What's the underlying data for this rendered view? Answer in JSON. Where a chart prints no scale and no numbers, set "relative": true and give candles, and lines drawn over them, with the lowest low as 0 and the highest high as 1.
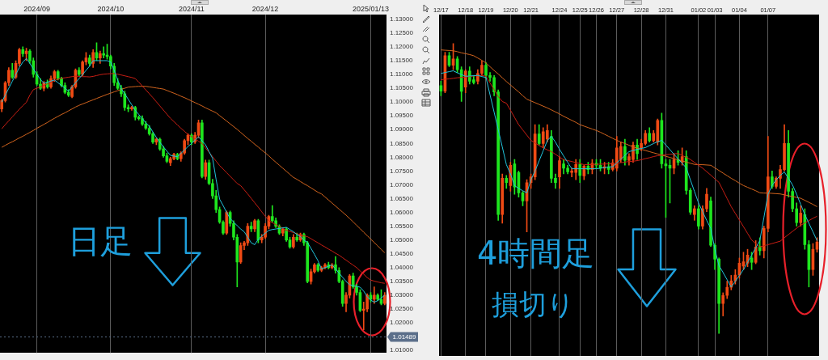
{
  "chart_data": [
    {
      "type": "candlestick",
      "grid": "x",
      "categories": [
        null,
        null,
        null,
        null,
        null,
        null,
        null,
        null,
        null,
        null,
        "2024/09",
        null,
        null,
        null,
        null,
        null,
        null,
        null,
        null,
        null,
        null,
        null,
        null,
        null,
        null,
        null,
        null,
        null,
        null,
        null,
        null,
        "2024/10",
        null,
        null,
        null,
        null,
        null,
        null,
        null,
        null,
        null,
        null,
        null,
        null,
        null,
        null,
        null,
        null,
        null,
        null,
        null,
        null,
        null,
        null,
        "2024/11",
        null,
        null,
        null,
        null,
        null,
        null,
        null,
        null,
        null,
        null,
        null,
        null,
        null,
        null,
        null,
        null,
        null,
        null,
        null,
        null,
        "2024/12",
        null,
        null,
        null,
        null,
        null,
        null,
        null,
        null,
        null,
        null,
        null,
        null,
        null,
        null,
        null,
        null,
        null,
        null,
        null,
        null,
        null,
        null,
        null,
        null,
        null,
        null,
        null,
        null,
        null,
        "2025/01/13",
        null,
        null,
        null,
        null
      ],
      "ylim": [
        1.0091,
        1.1317
      ],
      "yticks": [
        {
          "value": 1.01,
          "label": "1.01000"
        },
        {
          "value": 1.02,
          "label": "1.02000"
        },
        {
          "value": 1.025,
          "label": "1.02500"
        },
        {
          "value": 1.03,
          "label": "1.03000"
        },
        {
          "value": 1.035,
          "label": "1.03500"
        },
        {
          "value": 1.04,
          "label": "1.04000"
        },
        {
          "value": 1.045,
          "label": "1.04500"
        },
        {
          "value": 1.05,
          "label": "1.05000"
        },
        {
          "value": 1.055,
          "label": "1.05500"
        },
        {
          "value": 1.06,
          "label": "1.06000"
        },
        {
          "value": 1.065,
          "label": "1.06500"
        },
        {
          "value": 1.07,
          "label": "1.07000"
        },
        {
          "value": 1.075,
          "label": "1.07500"
        },
        {
          "value": 1.08,
          "label": "1.08000"
        },
        {
          "value": 1.085,
          "label": "1.08500"
        },
        {
          "value": 1.09,
          "label": "1.09000"
        },
        {
          "value": 1.095,
          "label": "1.09500"
        },
        {
          "value": 1.1,
          "label": "1.10000"
        },
        {
          "value": 1.105,
          "label": "1.10500"
        },
        {
          "value": 1.11,
          "label": "1.11000"
        },
        {
          "value": 1.115,
          "label": "1.11500"
        },
        {
          "value": 1.12,
          "label": "1.12000"
        },
        {
          "value": 1.125,
          "label": "1.12500"
        },
        {
          "value": 1.13,
          "label": "1.13000"
        }
      ],
      "ohlc": [
        [
          1.0975,
          1.101,
          1.0965,
          1.1005
        ],
        [
          1.1005,
          1.1075,
          1.1,
          1.107
        ],
        [
          1.107,
          1.1125,
          1.106,
          1.1115
        ],
        [
          1.1115,
          1.114,
          1.1085,
          1.109
        ],
        [
          1.109,
          1.115,
          1.1085,
          1.114
        ],
        [
          1.114,
          1.1195,
          1.113,
          1.119
        ],
        [
          1.119,
          1.12,
          1.1165,
          1.1175
        ],
        [
          1.1175,
          1.1195,
          1.115,
          1.1185
        ],
        [
          1.1185,
          1.119,
          1.114,
          1.115
        ],
        [
          1.115,
          1.116,
          1.109,
          1.11
        ],
        [
          1.11,
          1.111,
          1.106,
          1.1065
        ],
        [
          1.1065,
          1.1085,
          1.1045,
          1.105
        ],
        [
          1.105,
          1.1075,
          1.104,
          1.107
        ],
        [
          1.107,
          1.108,
          1.105,
          1.1055
        ],
        [
          1.1055,
          1.1095,
          1.105,
          1.1085
        ],
        [
          1.1085,
          1.1115,
          1.1075,
          1.111
        ],
        [
          1.111,
          1.1115,
          1.108,
          1.1085
        ],
        [
          1.1085,
          1.109,
          1.1055,
          1.106
        ],
        [
          1.106,
          1.107,
          1.103,
          1.1035
        ],
        [
          1.1035,
          1.1045,
          1.102,
          1.1025
        ],
        [
          1.102,
          1.106,
          1.1015,
          1.1055
        ],
        [
          1.1055,
          1.112,
          1.105,
          1.1115
        ],
        [
          1.1115,
          1.1125,
          1.1095,
          1.11
        ],
        [
          1.11,
          1.115,
          1.1095,
          1.1145
        ],
        [
          1.1145,
          1.118,
          1.1135,
          1.116
        ],
        [
          1.116,
          1.117,
          1.113,
          1.114
        ],
        [
          1.114,
          1.119,
          1.1125,
          1.118
        ],
        [
          1.118,
          1.1215,
          1.115,
          1.116
        ],
        [
          1.116,
          1.1185,
          1.114,
          1.1175
        ],
        [
          1.1175,
          1.12,
          1.116,
          1.117
        ],
        [
          1.117,
          1.121,
          1.1155,
          1.1165
        ],
        [
          1.1165,
          1.117,
          1.112,
          1.113
        ],
        [
          1.113,
          1.114,
          1.106,
          1.107
        ],
        [
          1.107,
          1.1085,
          1.1045,
          1.105
        ],
        [
          1.105,
          1.106,
          1.102,
          1.103
        ],
        [
          1.103,
          1.104,
          1.097,
          1.098
        ],
        [
          1.098,
          1.099,
          1.0965,
          1.0975
        ],
        [
          1.0975,
          1.0985,
          1.097,
          1.098
        ],
        [
          1.098,
          1.0985,
          1.0935,
          1.0945
        ],
        [
          1.0945,
          1.095,
          1.0935,
          1.094
        ],
        [
          1.094,
          1.095,
          1.0915,
          1.092
        ],
        [
          1.092,
          1.093,
          1.09,
          1.0905
        ],
        [
          1.0905,
          1.0915,
          1.088,
          1.0885
        ],
        [
          1.0885,
          1.089,
          1.085,
          1.0855
        ],
        [
          1.0855,
          1.087,
          1.0845,
          1.0865
        ],
        [
          1.0865,
          1.087,
          1.0825,
          1.083
        ],
        [
          1.083,
          1.084,
          1.08,
          1.0805
        ],
        [
          1.0805,
          1.0815,
          1.078,
          1.0785
        ],
        [
          1.078,
          1.08,
          1.077,
          1.0795
        ],
        [
          1.0795,
          1.0815,
          1.079,
          1.081
        ],
        [
          1.081,
          1.0815,
          1.079,
          1.0795
        ],
        [
          1.0795,
          1.082,
          1.0785,
          1.0815
        ],
        [
          1.0815,
          1.0865,
          1.081,
          1.086
        ],
        [
          1.086,
          1.0885,
          1.0845,
          1.088
        ],
        [
          1.088,
          1.0885,
          1.0845,
          1.0855
        ],
        [
          1.0855,
          1.089,
          1.085,
          1.088
        ],
        [
          1.088,
          1.0935,
          1.087,
          1.0925
        ],
        [
          1.0925,
          1.0935,
          1.0725,
          1.073
        ],
        [
          1.073,
          1.079,
          1.072,
          1.078
        ],
        [
          1.078,
          1.079,
          1.07,
          1.0705
        ],
        [
          1.0705,
          1.072,
          1.065,
          1.066
        ],
        [
          1.066,
          1.068,
          1.06,
          1.061
        ],
        [
          1.061,
          1.062,
          1.056,
          1.0565
        ],
        [
          1.0565,
          1.057,
          1.052,
          1.0525
        ],
        [
          1.0525,
          1.0605,
          1.052,
          1.06
        ],
        [
          1.06,
          1.0605,
          1.055,
          1.056
        ],
        [
          1.056,
          1.057,
          1.05,
          1.051
        ],
        [
          1.051,
          1.052,
          1.033,
          1.042
        ],
        [
          1.042,
          1.049,
          1.0415,
          1.048
        ],
        [
          1.048,
          1.0495,
          1.0465,
          1.049
        ],
        [
          1.049,
          1.056,
          1.048,
          1.055
        ],
        [
          1.055,
          1.0565,
          1.053,
          1.054
        ],
        [
          1.054,
          1.0575,
          1.053,
          1.057
        ],
        [
          1.057,
          1.0575,
          1.049,
          1.05
        ],
        [
          1.05,
          1.052,
          1.049,
          1.051
        ],
        [
          1.051,
          1.056,
          1.0505,
          1.055
        ],
        [
          1.055,
          1.059,
          1.054,
          1.0585
        ],
        [
          1.0585,
          1.0625,
          1.0565,
          1.057
        ],
        [
          1.057,
          1.058,
          1.0545,
          1.055
        ],
        [
          1.055,
          1.0555,
          1.052,
          1.0525
        ],
        [
          1.0525,
          1.0545,
          1.0515,
          1.054
        ],
        [
          1.054,
          1.0545,
          1.0495,
          1.05
        ],
        [
          1.05,
          1.051,
          1.047,
          1.0475
        ],
        [
          1.0475,
          1.052,
          1.047,
          1.051
        ],
        [
          1.051,
          1.0525,
          1.0495,
          1.05
        ],
        [
          1.05,
          1.0525,
          1.0495,
          1.052
        ],
        [
          1.052,
          1.0525,
          1.048,
          1.049
        ],
        [
          1.049,
          1.0495,
          1.0345,
          1.035
        ],
        [
          1.035,
          1.0395,
          1.034,
          1.0385
        ],
        [
          1.0385,
          1.0415,
          1.038,
          1.041
        ],
        [
          1.041,
          1.0415,
          1.0385,
          1.039
        ],
        [
          1.039,
          1.0405,
          1.0385,
          1.04
        ],
        [
          1.04,
          1.0415,
          1.0395,
          1.041
        ],
        [
          1.041,
          1.042,
          1.0395,
          1.04
        ],
        [
          1.04,
          1.0415,
          1.0395,
          1.041
        ],
        [
          1.041,
          1.044,
          1.038,
          1.039
        ],
        [
          1.039,
          1.04,
          1.0345,
          1.035
        ],
        [
          1.035,
          1.0355,
          1.026,
          1.027
        ],
        [
          1.027,
          1.031,
          1.024,
          1.03
        ],
        [
          1.03,
          1.0375,
          1.029,
          1.037
        ],
        [
          1.037,
          1.038,
          1.0325,
          1.033
        ],
        [
          1.033,
          1.034,
          1.03,
          1.031
        ],
        [
          1.031,
          1.032,
          1.024,
          1.0245
        ],
        [
          1.0245,
          1.0275,
          1.0175,
          1.025
        ],
        [
          1.025,
          1.0305,
          1.024,
          1.03
        ],
        [
          1.03,
          1.031,
          1.0275,
          1.0285
        ],
        [
          1.0285,
          1.033,
          1.027,
          1.03
        ],
        [
          1.03,
          1.0305,
          1.028,
          1.0285
        ],
        [
          1.0285,
          1.032,
          1.0265,
          1.027
        ],
        [
          1.027,
          1.031,
          1.0265,
          1.03
        ]
      ],
      "colors": [
        "#f04a14",
        "#f04a14",
        "#f04a14",
        "#1ee61e",
        "#f04a14",
        "#f04a14",
        "#1ee61e",
        "#f04a14",
        "#1ee61e",
        "#1ee61e",
        "#1ee61e",
        "#1ee61e",
        "#f04a14",
        "#1ee61e",
        "#f04a14",
        "#f04a14",
        "#1ee61e",
        "#1ee61e",
        "#1ee61e",
        "#1ee61e",
        "#f04a14",
        "#f04a14",
        "#1ee61e",
        "#f04a14",
        "#f04a14",
        "#1ee61e",
        "#f04a14",
        "#1ee61e",
        "#f04a14",
        "#1ee61e",
        "#1ee61e",
        "#1ee61e",
        "#1ee61e",
        "#1ee61e",
        "#1ee61e",
        "#1ee61e",
        "#1ee61e",
        "#f04a14",
        "#1ee61e",
        "#1ee61e",
        "#1ee61e",
        "#1ee61e",
        "#1ee61e",
        "#1ee61e",
        "#f04a14",
        "#1ee61e",
        "#1ee61e",
        "#1ee61e",
        "#f04a14",
        "#f04a14",
        "#1ee61e",
        "#f04a14",
        "#f04a14",
        "#f04a14",
        "#1ee61e",
        "#f04a14",
        "#f04a14",
        "#1ee61e",
        "#f04a14",
        "#1ee61e",
        "#1ee61e",
        "#1ee61e",
        "#1ee61e",
        "#1ee61e",
        "#f04a14",
        "#1ee61e",
        "#1ee61e",
        "#1ee61e",
        "#f04a14",
        "#f04a14",
        "#f04a14",
        "#1ee61e",
        "#f04a14",
        "#1ee61e",
        "#f04a14",
        "#f04a14",
        "#f04a14",
        "#1ee61e",
        "#1ee61e",
        "#1ee61e",
        "#f04a14",
        "#1ee61e",
        "#1ee61e",
        "#f04a14",
        "#1ee61e",
        "#f04a14",
        "#1ee61e",
        "#1ee61e",
        "#f04a14",
        "#f04a14",
        "#1ee61e",
        "#f04a14",
        "#f04a14",
        "#1ee61e",
        "#f04a14",
        "#1ee61e",
        "#1ee61e",
        "#1ee61e",
        "#f04a14",
        "#f04a14",
        "#1ee61e",
        "#1ee61e",
        "#1ee61e",
        "#f04a14",
        "#f04a14",
        "#1ee61e",
        "#f04a14",
        "#1ee61e",
        "#1ee61e",
        "#f04a14"
      ],
      "series": [
        {
          "type": "line",
          "color": "#22c4dc",
          "values": [
            1.1,
            1.1025,
            1.105,
            1.1075,
            1.11,
            1.1125,
            1.1145,
            1.1158,
            1.114,
            1.112,
            1.11,
            1.1082,
            1.1068,
            1.1072,
            1.1076,
            1.108,
            1.107,
            1.106,
            1.105,
            1.1039,
            1.1055,
            1.107,
            1.1085,
            1.11,
            1.1115,
            1.113,
            1.115,
            1.115,
            1.115,
            1.115,
            1.115,
            1.1145,
            1.1115,
            1.108,
            1.1048,
            1.103,
            1.101,
            1.099,
            1.097,
            1.0955,
            1.094,
            1.0925,
            1.0912,
            1.0892,
            1.0872,
            1.0854,
            1.0838,
            1.0822,
            1.0807,
            1.0804,
            1.0802,
            1.0814,
            1.0826,
            1.0839,
            1.085,
            1.0862,
            1.0874,
            1.086,
            1.0845,
            1.082,
            1.0796,
            1.072,
            1.0648,
            1.0625,
            1.06,
            1.0578,
            1.0565,
            1.0552,
            1.054,
            1.053,
            1.051,
            1.049,
            1.0483,
            1.0503,
            1.0514,
            1.0525,
            1.0535,
            1.0538,
            1.054,
            1.0542,
            1.0544,
            1.0546,
            1.0538,
            1.053,
            1.052,
            1.0512,
            1.05,
            1.0491,
            1.047,
            1.0448,
            1.0425,
            1.0395,
            1.04,
            1.0405,
            1.041,
            1.0395,
            1.038,
            1.0365,
            1.035,
            1.0338,
            1.0335,
            1.0332,
            1.0329,
            1.0315,
            1.0295,
            1.0282,
            1.0275,
            1.028,
            1.029,
            1.03
          ]
        },
        {
          "type": "line",
          "color": "#c81e14",
          "values": [
            1.0903,
            1.0918,
            1.0932,
            1.0946,
            1.096,
            1.0974,
            1.0987,
            1.0999,
            1.1025,
            1.1045,
            1.105,
            1.1055,
            1.106,
            1.1066,
            1.1072,
            1.1078,
            1.1083,
            1.1086,
            1.1088,
            1.109,
            1.1092,
            1.1094,
            1.1093,
            1.1092,
            1.1092,
            1.1091,
            1.1093,
            1.1096,
            1.1099,
            1.1101,
            1.1102,
            1.1103,
            1.1103,
            1.1101,
            1.1098,
            1.1095,
            1.1092,
            1.1089,
            1.1085,
            1.1072,
            1.1058,
            1.1044,
            1.103,
            1.1016,
            1.1001,
            1.0986,
            1.0971,
            1.0956,
            1.0941,
            1.0929,
            1.0917,
            1.0905,
            1.0894,
            1.0883,
            1.0875,
            1.0867,
            1.0858,
            1.085,
            1.0834,
            1.0818,
            1.0802,
            1.0786,
            1.077,
            1.0757,
            1.0744,
            1.0731,
            1.0718,
            1.0705,
            1.0697,
            1.0682,
            1.0667,
            1.0651,
            1.0635,
            1.0619,
            1.0602,
            1.0586,
            1.057,
            1.0563,
            1.0556,
            1.0549,
            1.0542,
            1.0535,
            1.0531,
            1.0527,
            1.0523,
            1.0519,
            1.0515,
            1.0512,
            1.0505,
            1.0497,
            1.049,
            1.0482,
            1.0475,
            1.0467,
            1.046,
            1.0452,
            1.0445,
            1.0436,
            1.0427,
            1.0418,
            1.0409,
            1.04,
            1.0388,
            1.0376,
            1.0364,
            1.0355,
            1.0351,
            1.0348,
            1.0345,
            1.0343
          ]
        },
        {
          "type": "line",
          "color": "#d2641e",
          "values": [
            1.0836,
            1.0843,
            1.085,
            1.0856,
            1.0863,
            1.087,
            1.0876,
            1.0883,
            1.089,
            1.0897,
            1.0905,
            1.0912,
            1.0919,
            1.0926,
            1.0934,
            1.0941,
            1.0948,
            1.0955,
            1.0961,
            1.0968,
            1.0975,
            1.0982,
            1.0988,
            1.0993,
            1.0998,
            1.1003,
            1.1008,
            1.1013,
            1.1018,
            1.1023,
            1.1028,
            1.1032,
            1.1037,
            1.1041,
            1.1046,
            1.105,
            1.1054,
            1.1055,
            1.1056,
            1.1057,
            1.1057,
            1.1057,
            1.1055,
            1.1053,
            1.1051,
            1.1049,
            1.1047,
            1.1042,
            1.1037,
            1.1032,
            1.1027,
            1.1021,
            1.1016,
            1.101,
            1.1004,
            1.0998,
            1.0992,
            1.0986,
            1.0979,
            1.0973,
            1.0967,
            1.0961,
            1.0951,
            1.0941,
            1.0931,
            1.0921,
            1.0911,
            1.0901,
            1.089,
            1.0879,
            1.0868,
            1.0858,
            1.0847,
            1.0837,
            1.0826,
            1.0816,
            1.0805,
            1.0793,
            1.0782,
            1.0771,
            1.076,
            1.0749,
            1.0738,
            1.0727,
            1.072,
            1.0712,
            1.0704,
            1.0697,
            1.0689,
            1.0681,
            1.0673,
            1.0667,
            1.0656,
            1.0645,
            1.0634,
            1.0623,
            1.0612,
            1.0601,
            1.059,
            1.0578,
            1.0566,
            1.0553,
            1.0541,
            1.0528,
            1.0516,
            1.0503,
            1.0491,
            1.0479,
            1.0466,
            1.0454
          ]
        }
      ],
      "ref_lines": [
        {
          "axis": "y",
          "value": 1.01489,
          "label": "1.01489"
        }
      ],
      "annotations": [
        "日足"
      ]
    },
    {
      "type": "candlestick",
      "grid": "x",
      "relative": true,
      "categories": [
        "12/17",
        null,
        null,
        null,
        null,
        null,
        "12/18",
        null,
        null,
        null,
        null,
        "12/19",
        null,
        null,
        null,
        null,
        null,
        "12/20",
        null,
        null,
        null,
        null,
        "12/21",
        null,
        null,
        null,
        null,
        null,
        null,
        "12/24",
        null,
        null,
        null,
        null,
        "12/25",
        null,
        null,
        null,
        "12/26",
        null,
        null,
        null,
        null,
        "12/27",
        null,
        null,
        null,
        null,
        null,
        "12/28",
        null,
        null,
        null,
        null,
        null,
        "12/31",
        null,
        null,
        null,
        null,
        null,
        null,
        null,
        "01/02",
        null,
        null,
        null,
        "01/03",
        null,
        null,
        null,
        null,
        null,
        "01/04",
        null,
        null,
        null,
        null,
        null,
        null,
        "01/07",
        null,
        null,
        null,
        null,
        null,
        null,
        null,
        null,
        null,
        null,
        null,
        null
      ],
      "ohlc": [
        [
          0.855,
          0.87,
          0.82,
          0.836
        ],
        [
          0.836,
          0.97,
          0.83,
          0.958
        ],
        [
          0.958,
          0.97,
          0.92,
          0.925
        ],
        [
          0.925,
          1,
          0.91,
          0.947
        ],
        [
          0.947,
          0.955,
          0.9,
          0.91
        ],
        [
          0.91,
          0.92,
          0.8,
          0.835
        ],
        [
          0.85,
          0.91,
          0.83,
          0.905
        ],
        [
          0.905,
          0.92,
          0.86,
          0.87
        ],
        [
          0.875,
          0.89,
          0.86,
          0.865
        ],
        [
          0.87,
          0.91,
          0.86,
          0.897
        ],
        [
          0.897,
          0.94,
          0.89,
          0.925
        ],
        [
          0.925,
          0.935,
          0.88,
          0.89
        ],
        [
          0.89,
          0.9,
          0.87,
          0.883
        ],
        [
          0.883,
          0.89,
          0.82,
          0.833
        ],
        [
          0.833,
          0.84,
          0.39,
          0.41
        ],
        [
          0.41,
          0.55,
          0.38,
          0.535
        ],
        [
          0.535,
          0.545,
          0.5,
          0.52
        ],
        [
          0.51,
          0.59,
          0.49,
          0.58
        ],
        [
          0.585,
          0.6,
          0.48,
          0.505
        ],
        [
          0.555,
          0.56,
          0.47,
          0.485
        ],
        [
          0.485,
          0.49,
          0.44,
          0.457
        ],
        [
          0.457,
          0.53,
          0.35,
          0.52
        ],
        [
          0.52,
          0.55,
          0.5,
          0.54
        ],
        [
          0.54,
          0.72,
          0.53,
          0.688
        ],
        [
          0.688,
          0.72,
          0.65,
          0.655
        ],
        [
          0.655,
          0.71,
          0.64,
          0.696
        ],
        [
          0.67,
          0.72,
          0.66,
          0.7
        ],
        [
          0.68,
          0.7,
          0.52,
          0.535
        ],
        [
          0.535,
          0.55,
          0.5,
          0.52
        ],
        [
          0.54,
          0.61,
          0.5,
          0.596
        ],
        [
          0.585,
          0.6,
          0.55,
          0.57
        ],
        [
          0.57,
          0.58,
          0.55,
          0.557
        ],
        [
          0.555,
          0.57,
          0.54,
          0.56
        ],
        [
          0.555,
          0.6,
          0.53,
          0.583
        ],
        [
          0.583,
          0.6,
          0.52,
          0.545
        ],
        [
          0.543,
          0.58,
          0.53,
          0.577
        ],
        [
          0.577,
          0.59,
          0.55,
          0.565
        ],
        [
          0.565,
          0.6,
          0.55,
          0.587
        ],
        [
          0.587,
          0.6,
          0.57,
          0.58
        ],
        [
          0.58,
          0.6,
          0.56,
          0.57
        ],
        [
          0.57,
          0.59,
          0.55,
          0.575
        ],
        [
          0.575,
          0.59,
          0.55,
          0.566
        ],
        [
          0.566,
          0.6,
          0.56,
          0.588
        ],
        [
          0.57,
          0.68,
          0.56,
          0.64
        ],
        [
          0.6,
          0.66,
          0.59,
          0.645
        ],
        [
          0.645,
          0.67,
          0.58,
          0.597
        ],
        [
          0.597,
          0.62,
          0.58,
          0.61
        ],
        [
          0.6,
          0.66,
          0.59,
          0.65
        ],
        [
          0.65,
          0.67,
          0.6,
          0.62
        ],
        [
          0.64,
          0.67,
          0.63,
          0.655
        ],
        [
          0.655,
          0.7,
          0.65,
          0.69
        ],
        [
          0.69,
          0.71,
          0.66,
          0.665
        ],
        [
          0.665,
          0.7,
          0.66,
          0.69
        ],
        [
          0.66,
          0.74,
          0.65,
          0.735
        ],
        [
          0.735,
          0.76,
          0.57,
          0.585
        ],
        [
          0.585,
          0.6,
          0.4,
          0.578
        ],
        [
          0.58,
          0.6,
          0.45,
          0.57
        ],
        [
          0.57,
          0.62,
          0.55,
          0.6
        ],
        [
          0.6,
          0.63,
          0.58,
          0.59
        ],
        [
          0.59,
          0.64,
          0.58,
          0.61
        ],
        [
          0.61,
          0.63,
          0.48,
          0.493
        ],
        [
          0.493,
          0.5,
          0.41,
          0.418
        ],
        [
          0.41,
          0.44,
          0.39,
          0.43
        ],
        [
          0.43,
          0.44,
          0.36,
          0.37
        ],
        [
          0.37,
          0.44,
          0.36,
          0.43
        ],
        [
          0.43,
          0.5,
          0.42,
          0.48
        ],
        [
          0.457,
          0.47,
          0.3,
          0.304
        ],
        [
          0.304,
          0.31,
          0.22,
          0.256
        ],
        [
          0.256,
          0.26,
          0,
          0.103
        ],
        [
          0.103,
          0.14,
          0.06,
          0.131
        ],
        [
          0.131,
          0.18,
          0.12,
          0.159
        ],
        [
          0.159,
          0.2,
          0.15,
          0.181
        ],
        [
          0.181,
          0.22,
          0.17,
          0.201
        ],
        [
          0.201,
          0.26,
          0.19,
          0.242
        ],
        [
          0.232,
          0.28,
          0.22,
          0.247
        ],
        [
          0.242,
          0.29,
          0.23,
          0.27
        ],
        [
          0.26,
          0.28,
          0.22,
          0.245
        ],
        [
          0.245,
          0.32,
          0.24,
          0.298
        ],
        [
          0.3,
          0.33,
          0.27,
          0.285
        ],
        [
          0.285,
          0.37,
          0.26,
          0.362
        ],
        [
          0.362,
          0.68,
          0.35,
          0.54
        ],
        [
          0.54,
          0.56,
          0.5,
          0.507
        ],
        [
          0.507,
          0.54,
          0.5,
          0.535
        ],
        [
          0.535,
          0.58,
          0.5,
          0.565
        ],
        [
          0.565,
          0.72,
          0.56,
          0.655
        ],
        [
          0.655,
          0.7,
          0.47,
          0.49
        ],
        [
          0.49,
          0.5,
          0.42,
          0.43
        ],
        [
          0.43,
          0.45,
          0.37,
          0.382
        ],
        [
          0.382,
          0.44,
          0.37,
          0.415
        ],
        [
          0.41,
          0.43,
          0.29,
          0.306
        ],
        [
          0.306,
          0.32,
          0.16,
          0.22
        ],
        [
          0.22,
          0.31,
          0.2,
          0.29
        ],
        [
          0.29,
          0.33,
          0.28,
          0.315
        ]
      ],
      "colors": [
        "#1ee61e",
        "#f04a14",
        "#1ee61e",
        "#f04a14",
        "#1ee61e",
        "#1ee61e",
        "#f04a14",
        "#1ee61e",
        "#1ee61e",
        "#f04a14",
        "#f04a14",
        "#1ee61e",
        "#1ee61e",
        "#1ee61e",
        "#1ee61e",
        "#f04a14",
        "#1ee61e",
        "#f04a14",
        "#1ee61e",
        "#1ee61e",
        "#1ee61e",
        "#f04a14",
        "#f04a14",
        "#f04a14",
        "#1ee61e",
        "#f04a14",
        "#f04a14",
        "#1ee61e",
        "#1ee61e",
        "#f04a14",
        "#1ee61e",
        "#1ee61e",
        "#f04a14",
        "#f04a14",
        "#1ee61e",
        "#f04a14",
        "#1ee61e",
        "#f04a14",
        "#1ee61e",
        "#1ee61e",
        "#f04a14",
        "#1ee61e",
        "#f04a14",
        "#f04a14",
        "#f04a14",
        "#1ee61e",
        "#f04a14",
        "#f04a14",
        "#1ee61e",
        "#f04a14",
        "#f04a14",
        "#1ee61e",
        "#f04a14",
        "#f04a14",
        "#1ee61e",
        "#1ee61e",
        "#1ee61e",
        "#f04a14",
        "#1ee61e",
        "#f04a14",
        "#1ee61e",
        "#1ee61e",
        "#f04a14",
        "#1ee61e",
        "#f04a14",
        "#f04a14",
        "#1ee61e",
        "#1ee61e",
        "#1ee61e",
        "#f04a14",
        "#f04a14",
        "#f04a14",
        "#f04a14",
        "#f04a14",
        "#f04a14",
        "#f04a14",
        "#1ee61e",
        "#f04a14",
        "#1ee61e",
        "#f04a14",
        "#f04a14",
        "#1ee61e",
        "#f04a14",
        "#f04a14",
        "#f04a14",
        "#1ee61e",
        "#1ee61e",
        "#1ee61e",
        "#f04a14",
        "#1ee61e",
        "#1ee61e",
        "#f04a14",
        "#f04a14"
      ],
      "series": [
        {
          "type": "line",
          "color": "#22c4dc",
          "values": [
            0.897,
            0.9,
            0.903,
            0.906,
            0.899,
            0.893,
            0.887,
            0.888,
            0.889,
            0.89,
            0.886,
            0.883,
            0.823,
            0.763,
            0.703,
            0.643,
            0.582,
            0.55,
            0.51,
            0.5,
            0.492,
            0.485,
            0.53,
            0.56,
            0.595,
            0.63,
            0.665,
            0.68,
            0.66,
            0.635,
            0.612,
            0.59,
            0.568,
            0.568,
            0.568,
            0.568,
            0.568,
            0.568,
            0.568,
            0.57,
            0.572,
            0.574,
            0.575,
            0.588,
            0.601,
            0.614,
            0.627,
            0.631,
            0.635,
            0.638,
            0.641,
            0.648,
            0.655,
            0.661,
            0.666,
            0.65,
            0.634,
            0.618,
            0.602,
            0.587,
            0.571,
            0.53,
            0.49,
            0.45,
            0.42,
            0.39,
            0.362,
            0.29,
            0.234,
            0.21,
            0.185,
            0.16,
            0.18,
            0.2,
            0.22,
            0.245,
            0.27,
            0.295,
            0.32,
            0.4,
            0.48,
            0.51,
            0.53,
            0.545,
            0.557,
            0.535,
            0.512,
            0.48,
            0.445,
            0.41,
            0.38,
            0.35,
            0.32
          ]
        },
        {
          "type": "line",
          "color": "#c81e14",
          "values": [
            0.875,
            0.877,
            0.878,
            0.88,
            0.882,
            0.883,
            0.885,
            0.886,
            0.888,
            0.889,
            0.89,
            0.887,
            0.864,
            0.841,
            0.817,
            0.8,
            0.794,
            0.77,
            0.745,
            0.72,
            0.702,
            0.684,
            0.666,
            0.657,
            0.648,
            0.64,
            0.633,
            0.627,
            0.618,
            0.608,
            0.599,
            0.596,
            0.593,
            0.589,
            0.586,
            0.582,
            0.582,
            0.583,
            0.583,
            0.584,
            0.584,
            0.585,
            0.585,
            0.587,
            0.589,
            0.591,
            0.593,
            0.594,
            0.596,
            0.599,
            0.603,
            0.606,
            0.61,
            0.613,
            0.615,
            0.616,
            0.618,
            0.619,
            0.621,
            0.614,
            0.607,
            0.6,
            0.59,
            0.58,
            0.57,
            0.558,
            0.546,
            0.533,
            0.521,
            0.493,
            0.465,
            0.437,
            0.414,
            0.391,
            0.368,
            0.345,
            0.322,
            0.31,
            0.298,
            0.302,
            0.306,
            0.31,
            0.314,
            0.318,
            0.33,
            0.341,
            0.352,
            0.363,
            0.373,
            0.381,
            0.389,
            0.397,
            0.404
          ]
        },
        {
          "type": "line",
          "color": "#d2641e",
          "values": [
            0.978,
            0.977,
            0.976,
            0.975,
            0.972,
            0.968,
            0.965,
            0.962,
            0.958,
            0.95,
            0.942,
            0.933,
            0.92,
            0.907,
            0.895,
            0.882,
            0.869,
            0.857,
            0.845,
            0.833,
            0.82,
            0.808,
            0.802,
            0.796,
            0.79,
            0.784,
            0.778,
            0.771,
            0.764,
            0.757,
            0.749,
            0.742,
            0.735,
            0.728,
            0.72,
            0.715,
            0.71,
            0.705,
            0.7,
            0.694,
            0.687,
            0.68,
            0.673,
            0.666,
            0.66,
            0.655,
            0.649,
            0.644,
            0.638,
            0.635,
            0.631,
            0.627,
            0.623,
            0.619,
            0.615,
            0.611,
            0.607,
            0.603,
            0.599,
            0.595,
            0.591,
            0.587,
            0.583,
            0.582,
            0.582,
            0.581,
            0.58,
            0.571,
            0.562,
            0.553,
            0.544,
            0.535,
            0.527,
            0.518,
            0.51,
            0.504,
            0.498,
            0.492,
            0.485,
            0.484,
            0.484,
            0.483,
            0.482,
            0.481,
            0.478,
            0.475,
            0.472,
            0.469,
            0.466,
            0.459,
            0.452,
            0.445,
            0.437
          ]
        }
      ],
      "annotations": [
        "4時間足",
        "損切り"
      ]
    }
  ]
}
